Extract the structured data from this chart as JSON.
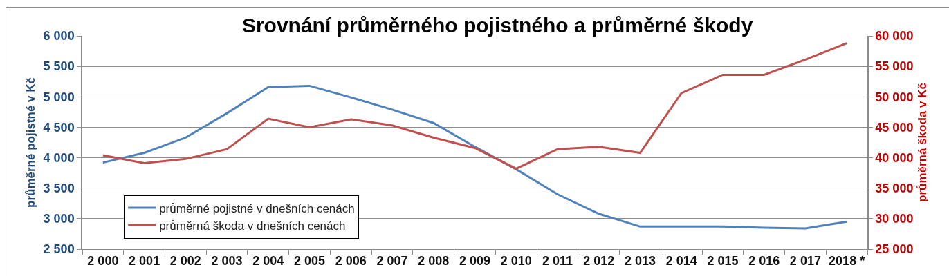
{
  "chart_data": {
    "type": "line",
    "title": "Srovnání průměrného pojistného a průměrné škody",
    "ylabel": "průměrné pojistné v Kč",
    "y2label": "průměrná škoda v Kč",
    "categories": [
      "2 000",
      "2 001",
      "2 002",
      "2 003",
      "2 004",
      "2 005",
      "2 006",
      "2 007",
      "2 008",
      "2 009",
      "2 010",
      "2 011",
      "2 012",
      "2 013",
      "2 014",
      "2 015",
      "2 016",
      "2 017",
      "2018 *"
    ],
    "series": [
      {
        "name": "průměrné pojistné v dnešních cenách",
        "color": "#4f81bd",
        "values": [
          3920,
          4080,
          4330,
          4730,
          5160,
          5180,
          4990,
          4790,
          4570,
          4180,
          3810,
          3400,
          3080,
          2870,
          2870,
          2870,
          2850,
          2840,
          2950
        ]
      },
      {
        "name": "průměrná škoda v dnešních cenách",
        "color": "#c0504d",
        "axis": "y2",
        "values": [
          40400,
          39100,
          39800,
          41400,
          46400,
          45000,
          46300,
          45300,
          43300,
          41600,
          38200,
          41400,
          41800,
          40800,
          50600,
          53600,
          53600,
          56100,
          58800
        ]
      }
    ],
    "ylim": [
      2500,
      6000
    ],
    "yticks": [
      {
        "value": 2500,
        "label": "2 500"
      },
      {
        "value": 3000,
        "label": "3 000"
      },
      {
        "value": 3500,
        "label": "3 500"
      },
      {
        "value": 4000,
        "label": "4 000"
      },
      {
        "value": 4500,
        "label": "4 500"
      },
      {
        "value": 5000,
        "label": "5 000"
      },
      {
        "value": 5500,
        "label": "5 500"
      },
      {
        "value": 6000,
        "label": "6 000"
      }
    ],
    "y2lim": [
      25000,
      60000
    ],
    "y2ticks": [
      {
        "value": 25000,
        "label": "25 000"
      },
      {
        "value": 30000,
        "label": "30 000"
      },
      {
        "value": 35000,
        "label": "35 000"
      },
      {
        "value": 40000,
        "label": "40 000"
      },
      {
        "value": 45000,
        "label": "45 000"
      },
      {
        "value": 50000,
        "label": "50 000"
      },
      {
        "value": 55000,
        "label": "55 000"
      },
      {
        "value": 60000,
        "label": "60 000"
      }
    ],
    "grid": "y",
    "legend": "bottom left",
    "marker": "none",
    "line_style": "solid"
  }
}
